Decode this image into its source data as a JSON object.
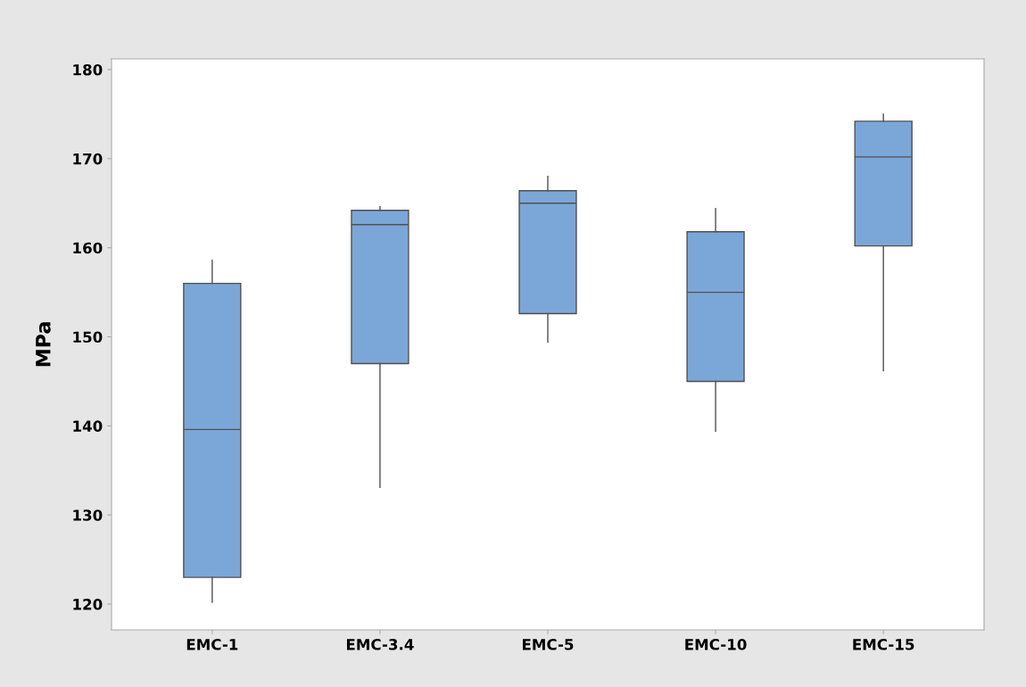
{
  "chart_data": {
    "type": "box",
    "ylabel": "MPa",
    "categories": [
      "EMC-1",
      "EMC-3.4",
      "EMC-5",
      "EMC-10",
      "EMC-15"
    ],
    "boxes": [
      {
        "low": 120.2,
        "q1": 123.0,
        "median": 139.6,
        "q3": 156.0,
        "high": 158.6
      },
      {
        "low": 133.1,
        "q1": 147.0,
        "median": 162.6,
        "q3": 164.2,
        "high": 164.6
      },
      {
        "low": 149.4,
        "q1": 152.6,
        "median": 165.0,
        "q3": 166.4,
        "high": 168.0
      },
      {
        "low": 139.4,
        "q1": 145.0,
        "median": 155.0,
        "q3": 161.8,
        "high": 164.4
      },
      {
        "low": 146.2,
        "q1": 160.2,
        "median": 170.2,
        "q3": 174.2,
        "high": 175.0
      }
    ],
    "color": "#7ba7d8",
    "ylim": [
      117.1,
      181.2
    ],
    "yticks": [
      120,
      130,
      140,
      150,
      160,
      170,
      180
    ],
    "grid": false
  }
}
